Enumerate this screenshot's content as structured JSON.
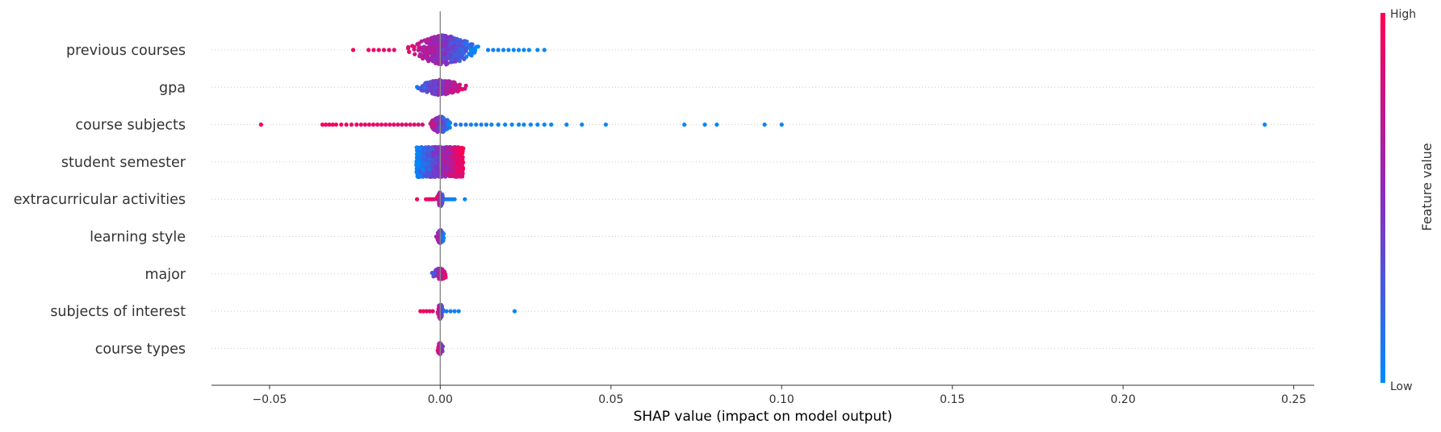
{
  "chart_data": {
    "type": "scatter",
    "subtype": "shap-beeswarm",
    "xlabel": "SHAP value (impact on model output)",
    "xlim": [
      -0.067,
      0.256
    ],
    "xticks": [
      -0.05,
      0.0,
      0.05,
      0.1,
      0.15,
      0.2,
      0.25
    ],
    "xtick_labels": [
      "−0.05",
      "0.00",
      "0.05",
      "0.10",
      "0.15",
      "0.20",
      "0.25"
    ],
    "zero_line": 0.0,
    "grid": false,
    "row_guides": true,
    "colorbar": {
      "title": "Feature value",
      "high_label": "High",
      "low_label": "Low",
      "high_color": "#ff0052",
      "mid_color": "#8a2cc0",
      "low_color": "#008bfb",
      "placement": "right"
    },
    "features": [
      {
        "name": "previous courses",
        "core": {
          "min": -0.012,
          "max": 0.012,
          "peak": 0.001,
          "width": 0.0045,
          "height": 0.8,
          "count": 420,
          "low_side": "right"
        },
        "outliers": [
          {
            "x": -0.0255,
            "v": 0.97
          },
          {
            "x": -0.021,
            "v": 0.95
          },
          {
            "x": -0.0195,
            "v": 0.93
          },
          {
            "x": -0.018,
            "v": 0.92
          },
          {
            "x": -0.0165,
            "v": 0.9
          },
          {
            "x": -0.015,
            "v": 0.9
          },
          {
            "x": -0.0135,
            "v": 0.88
          },
          {
            "x": 0.014,
            "v": 0.06
          },
          {
            "x": 0.0155,
            "v": 0.05
          },
          {
            "x": 0.017,
            "v": 0.05
          },
          {
            "x": 0.0185,
            "v": 0.04
          },
          {
            "x": 0.02,
            "v": 0.04
          },
          {
            "x": 0.0215,
            "v": 0.03
          },
          {
            "x": 0.023,
            "v": 0.03
          },
          {
            "x": 0.0245,
            "v": 0.03
          },
          {
            "x": 0.026,
            "v": 0.02
          },
          {
            "x": 0.0285,
            "v": 0.02
          },
          {
            "x": 0.0305,
            "v": 0.02
          }
        ]
      },
      {
        "name": "gpa",
        "core": {
          "min": -0.009,
          "max": 0.009,
          "peak": 0.0,
          "width": 0.004,
          "height": 0.42,
          "count": 280,
          "low_side": "left"
        },
        "outliers": []
      },
      {
        "name": "course subjects",
        "core": {
          "min": -0.004,
          "max": 0.003,
          "peak": 0.0,
          "width": 0.0015,
          "height": 0.45,
          "count": 170,
          "low_side": "right"
        },
        "outliers": [
          {
            "x": -0.0525,
            "v": 0.98
          },
          {
            "x": -0.0345,
            "v": 0.96
          },
          {
            "x": -0.0335,
            "v": 0.96
          },
          {
            "x": -0.0325,
            "v": 0.95
          },
          {
            "x": -0.0315,
            "v": 0.95
          },
          {
            "x": -0.0305,
            "v": 0.95
          },
          {
            "x": -0.029,
            "v": 0.94
          },
          {
            "x": -0.0275,
            "v": 0.94
          },
          {
            "x": -0.026,
            "v": 0.93
          },
          {
            "x": -0.0245,
            "v": 0.93
          },
          {
            "x": -0.0232,
            "v": 0.92
          },
          {
            "x": -0.022,
            "v": 0.92
          },
          {
            "x": -0.0208,
            "v": 0.92
          },
          {
            "x": -0.0196,
            "v": 0.91
          },
          {
            "x": -0.0184,
            "v": 0.91
          },
          {
            "x": -0.0172,
            "v": 0.9
          },
          {
            "x": -0.016,
            "v": 0.9
          },
          {
            "x": -0.0148,
            "v": 0.9
          },
          {
            "x": -0.0136,
            "v": 0.89
          },
          {
            "x": -0.0124,
            "v": 0.89
          },
          {
            "x": -0.0112,
            "v": 0.88
          },
          {
            "x": -0.01,
            "v": 0.88
          },
          {
            "x": -0.0088,
            "v": 0.87
          },
          {
            "x": -0.0076,
            "v": 0.86
          },
          {
            "x": -0.0064,
            "v": 0.85
          },
          {
            "x": -0.0052,
            "v": 0.82
          },
          {
            "x": 0.0045,
            "v": 0.15
          },
          {
            "x": 0.006,
            "v": 0.12
          },
          {
            "x": 0.0075,
            "v": 0.1
          },
          {
            "x": 0.009,
            "v": 0.08
          },
          {
            "x": 0.0105,
            "v": 0.07
          },
          {
            "x": 0.012,
            "v": 0.06
          },
          {
            "x": 0.0135,
            "v": 0.05
          },
          {
            "x": 0.015,
            "v": 0.05
          },
          {
            "x": 0.017,
            "v": 0.04
          },
          {
            "x": 0.019,
            "v": 0.04
          },
          {
            "x": 0.021,
            "v": 0.03
          },
          {
            "x": 0.023,
            "v": 0.03
          },
          {
            "x": 0.0245,
            "v": 0.03
          },
          {
            "x": 0.0265,
            "v": 0.02
          },
          {
            "x": 0.0285,
            "v": 0.02
          },
          {
            "x": 0.0305,
            "v": 0.02
          },
          {
            "x": 0.0325,
            "v": 0.02
          },
          {
            "x": 0.037,
            "v": 0.02
          },
          {
            "x": 0.0415,
            "v": 0.02
          },
          {
            "x": 0.0485,
            "v": 0.02
          },
          {
            "x": 0.0715,
            "v": 0.02
          },
          {
            "x": 0.0775,
            "v": 0.02
          },
          {
            "x": 0.081,
            "v": 0.02
          },
          {
            "x": 0.095,
            "v": 0.02
          },
          {
            "x": 0.1,
            "v": 0.02
          },
          {
            "x": 0.2415,
            "v": 0.02
          }
        ]
      },
      {
        "name": "student semester",
        "core": {
          "min": -0.007,
          "max": 0.0068,
          "peak": 0.0,
          "width": 0.02,
          "height": 0.8,
          "count": 1000,
          "low_side": "left",
          "uniform": true
        },
        "outliers": []
      },
      {
        "name": "extracurricular activities",
        "core": {
          "min": -0.0012,
          "max": 0.0012,
          "peak": 0.0,
          "width": 0.0005,
          "height": 0.4,
          "count": 90,
          "low_side": "right"
        },
        "outliers": [
          {
            "x": -0.0068,
            "v": 0.96
          },
          {
            "x": -0.0042,
            "v": 0.95
          },
          {
            "x": -0.0036,
            "v": 0.94
          },
          {
            "x": -0.0031,
            "v": 0.92
          },
          {
            "x": -0.0026,
            "v": 0.9
          },
          {
            "x": -0.0021,
            "v": 0.88
          },
          {
            "x": -0.0017,
            "v": 0.85
          },
          {
            "x": 0.0018,
            "v": 0.08
          },
          {
            "x": 0.0024,
            "v": 0.07
          },
          {
            "x": 0.003,
            "v": 0.06
          },
          {
            "x": 0.0036,
            "v": 0.05
          },
          {
            "x": 0.0042,
            "v": 0.04
          },
          {
            "x": 0.0072,
            "v": 0.03
          }
        ]
      },
      {
        "name": "learning style",
        "core": {
          "min": -0.0018,
          "max": 0.0012,
          "peak": 0.0,
          "width": 0.0009,
          "height": 0.36,
          "count": 90,
          "low_side": "right"
        },
        "outliers": []
      },
      {
        "name": "major",
        "core": {
          "min": -0.0035,
          "max": 0.0018,
          "peak": 0.0,
          "width": 0.0008,
          "height": 0.3,
          "count": 80,
          "low_side": "left"
        },
        "outliers": []
      },
      {
        "name": "subjects of interest",
        "core": {
          "min": -0.001,
          "max": 0.001,
          "peak": 0.0,
          "width": 0.0005,
          "height": 0.42,
          "count": 80,
          "low_side": "right"
        },
        "outliers": [
          {
            "x": -0.0058,
            "v": 0.95
          },
          {
            "x": -0.0049,
            "v": 0.93
          },
          {
            "x": -0.004,
            "v": 0.91
          },
          {
            "x": -0.0031,
            "v": 0.89
          },
          {
            "x": -0.0022,
            "v": 0.87
          },
          {
            "x": 0.0018,
            "v": 0.1
          },
          {
            "x": 0.003,
            "v": 0.06
          },
          {
            "x": 0.0042,
            "v": 0.05
          },
          {
            "x": 0.0054,
            "v": 0.04
          },
          {
            "x": 0.0218,
            "v": 0.03
          }
        ]
      },
      {
        "name": "course types",
        "core": {
          "min": -0.0008,
          "max": 0.0015,
          "peak": 0.0,
          "width": 0.0004,
          "height": 0.3,
          "count": 50,
          "low_side": "right"
        },
        "outliers": []
      }
    ]
  }
}
